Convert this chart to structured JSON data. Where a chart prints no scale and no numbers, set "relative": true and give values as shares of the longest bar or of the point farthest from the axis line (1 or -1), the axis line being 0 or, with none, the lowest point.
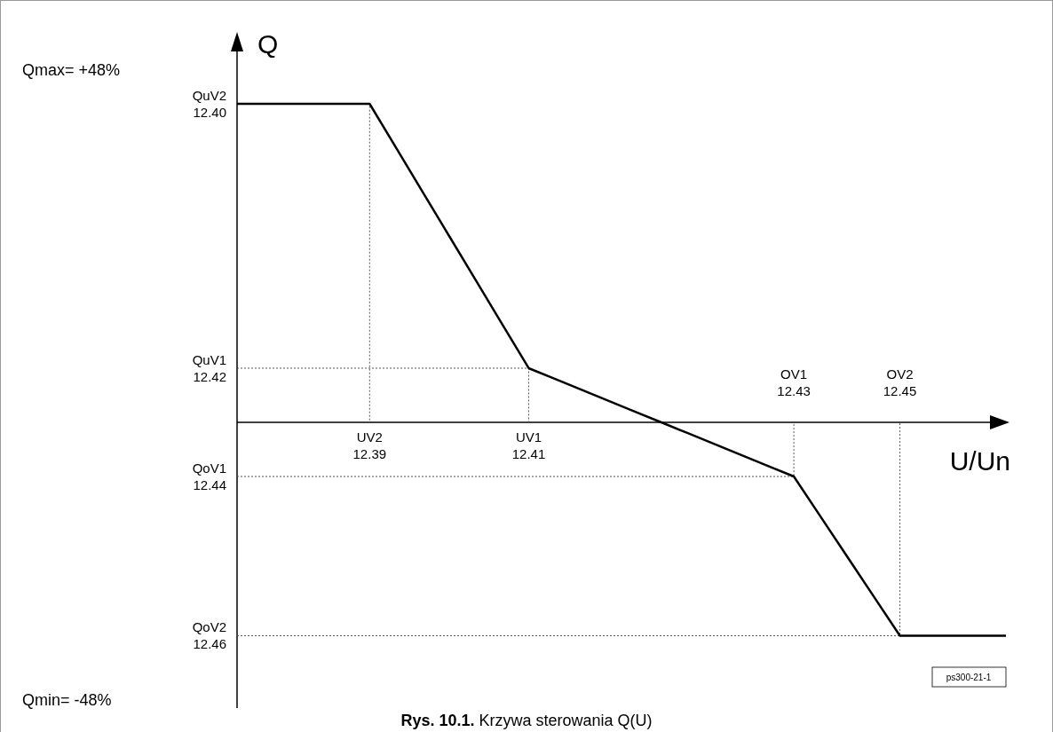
{
  "chart_data": {
    "type": "line",
    "relative": true,
    "title": "Rys. 10.1. Krzywa sterowania Q(U)",
    "xlabel": "U/Un",
    "ylabel": "Q",
    "color": "#000000",
    "categories": [
      null,
      null,
      null,
      null,
      null,
      null,
      null,
      null,
      null,
      null,
      null,
      null,
      null,
      null,
      null,
      null,
      null,
      null,
      null,
      null,
      null,
      null,
      null,
      null,
      null,
      null,
      null,
      null,
      null,
      null
    ],
    "values": [
      1,
      1,
      1,
      1,
      1,
      1,
      0.862,
      0.723,
      0.585,
      0.447,
      0.308,
      0.17,
      0.136,
      0.102,
      0.068,
      0.034,
      0,
      -0.034,
      -0.068,
      -0.102,
      -0.136,
      -0.17,
      -0.295,
      -0.42,
      -0.545,
      -0.67,
      -0.67,
      -0.67,
      -0.67,
      -0.67
    ],
    "annotations": [
      "Qmax= +48%",
      "Qmin= -48%",
      "ps300-21-1",
      "UV2\n12.39",
      "UV1\n12.41",
      "OV1\n12.43",
      "OV2\n12.45",
      "QuV2\n12.40",
      "QuV1\n12.42",
      "QoV1\n12.44",
      "QoV2\n12.46"
    ]
  }
}
